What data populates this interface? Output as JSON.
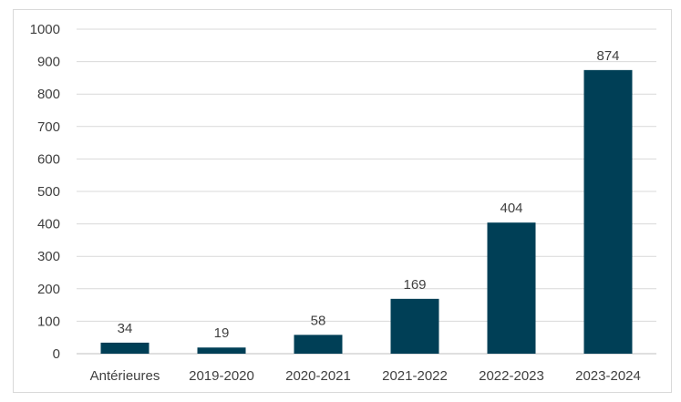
{
  "chart_data": {
    "type": "bar",
    "categories": [
      "Antérieures",
      "2019-2020",
      "2020-2021",
      "2021-2022",
      "2022-2023",
      "2023-2024"
    ],
    "values": [
      34,
      19,
      58,
      169,
      404,
      874
    ],
    "title": "",
    "xlabel": "",
    "ylabel": "",
    "ylim": [
      0,
      1000
    ],
    "yticks": [
      0,
      100,
      200,
      300,
      400,
      500,
      600,
      700,
      800,
      900,
      1000
    ],
    "grid": true,
    "legend": "none",
    "data_labels": true,
    "colors": {
      "bar": "#003f56",
      "grid": "#d9d9d9",
      "text": "#404040",
      "frame": "#d9d9d9"
    }
  }
}
